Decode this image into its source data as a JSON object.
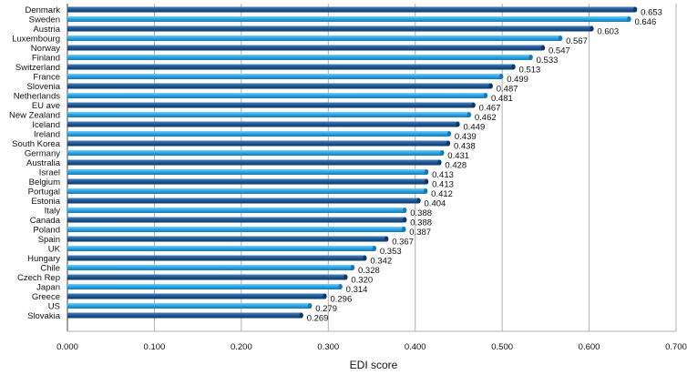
{
  "chart_data": {
    "type": "bar",
    "orientation": "horizontal",
    "title": "",
    "xlabel": "EDI score",
    "ylabel": "",
    "xlim": [
      0,
      0.7
    ],
    "xticks": [
      "0.000",
      "0.100",
      "0.200",
      "0.300",
      "0.400",
      "0.500",
      "0.600",
      "0.700"
    ],
    "grid": true,
    "categories": [
      "Denmark",
      "Sweden",
      "Austria",
      "Luxembourg",
      "Norway",
      "Finland",
      "Switzerland",
      "France",
      "Slovenia",
      "Netherlands",
      "EU ave",
      "New Zealand",
      "Iceland",
      "Ireland",
      "South Korea",
      "Germany",
      "Australia",
      "Israel",
      "Belgium",
      "Portugal",
      "Estonia",
      "Italy",
      "Canada",
      "Poland",
      "Spain",
      "UK",
      "Hungary",
      "Chile",
      "Czech Rep",
      "Japan",
      "Greece",
      "US",
      "Slovakia"
    ],
    "values": [
      0.653,
      0.646,
      0.603,
      0.567,
      0.547,
      0.533,
      0.513,
      0.499,
      0.487,
      0.481,
      0.467,
      0.462,
      0.449,
      0.439,
      0.438,
      0.431,
      0.428,
      0.413,
      0.413,
      0.412,
      0.404,
      0.388,
      0.388,
      0.387,
      0.367,
      0.353,
      0.342,
      0.328,
      0.32,
      0.314,
      0.296,
      0.279,
      0.269
    ],
    "value_labels": [
      "0.653",
      "0.646",
      "0.603",
      "0.567",
      "0.547",
      "0.533",
      "0.513",
      "0.499",
      "0.487",
      "0.481",
      "0.467",
      "0.462",
      "0.449",
      "0.439",
      "0.438",
      "0.431",
      "0.428",
      "0.413",
      "0.413",
      "0.412",
      "0.404",
      "0.388",
      "0.388",
      "0.387",
      "0.367",
      "0.353",
      "0.342",
      "0.328",
      "0.320",
      "0.314",
      "0.296",
      "0.279",
      "0.269"
    ],
    "colors": {
      "dark_bar": "#1f5a96",
      "light_bar": "#2ea6e6",
      "grid": "#b0b0b0",
      "axis": "#444444"
    }
  }
}
